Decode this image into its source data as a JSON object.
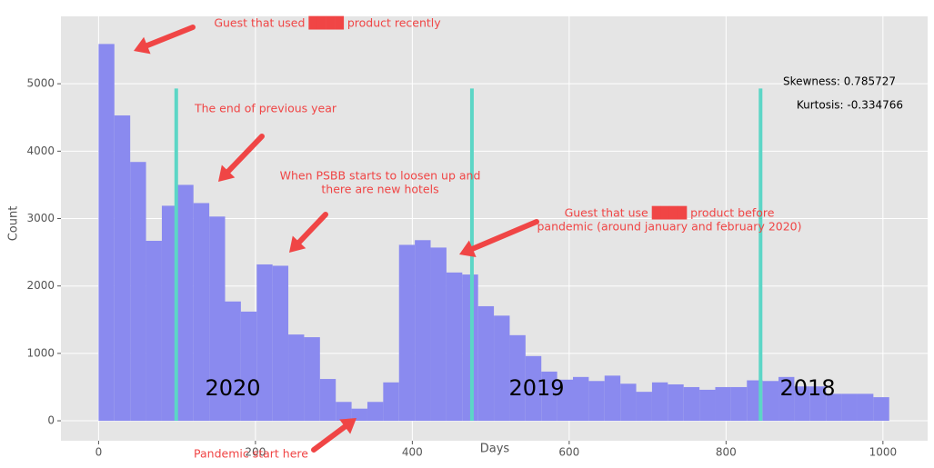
{
  "chart_data": {
    "type": "histogram",
    "xlabel": "Days",
    "ylabel": "Count",
    "bins": [
      0,
      20.16,
      40.32,
      60.48,
      80.64,
      100.8,
      120.96,
      141.12,
      161.28,
      181.44,
      201.6,
      221.76,
      241.92,
      262.08,
      282.24,
      302.4,
      322.56,
      342.72,
      362.88,
      383.04,
      403.2,
      423.36,
      443.52,
      463.68,
      483.84,
      504,
      524.16,
      544.32,
      564.48,
      584.64,
      604.8,
      624.96,
      645.12,
      665.28,
      685.44,
      705.6,
      725.76,
      745.92,
      766.08,
      786.24,
      806.4,
      826.56,
      846.72,
      866.88,
      887.04,
      907.2,
      927.36,
      947.52,
      967.68,
      987.84,
      1008
    ],
    "counts": [
      5590,
      4530,
      3840,
      2670,
      3190,
      3500,
      3230,
      3030,
      1770,
      1620,
      2320,
      2300,
      1280,
      1240,
      620,
      280,
      180,
      280,
      570,
      2610,
      2680,
      2570,
      2200,
      2170,
      1700,
      1560,
      1270,
      960,
      730,
      610,
      650,
      590,
      670,
      550,
      430,
      570,
      540,
      500,
      460,
      500,
      500,
      600,
      590,
      650,
      510,
      510,
      400,
      400,
      400,
      350
    ],
    "color": "#8a8aef",
    "xlim": [
      -48,
      1057
    ],
    "ylim": [
      -296,
      6000
    ],
    "xticks": [
      0,
      200,
      400,
      600,
      800,
      1000
    ],
    "yticks": [
      0,
      1000,
      2000,
      3000,
      4000,
      5000
    ],
    "grid": true,
    "vlines": {
      "x": [
        99,
        476,
        844
      ],
      "ymax": 4930,
      "color": "#5cd6c6"
    },
    "year_labels": [
      "2020",
      "2019",
      "2018"
    ],
    "stats": [
      "Skewness: 0.785727",
      "Kurtosis: -0.334766"
    ],
    "annotations": [
      {
        "lines": [
          "Guest that used ████ product recently"
        ]
      },
      {
        "lines": [
          "The end of previous year"
        ]
      },
      {
        "lines": [
          "When PSBB starts to loosen up and",
          "there are new hotels"
        ]
      },
      {
        "lines": [
          "Guest that use ████ product before",
          "pandemic (around january and february 2020)"
        ]
      },
      {
        "lines": [
          "Pandemic start here"
        ]
      }
    ],
    "annotation_color": "#f04545"
  }
}
